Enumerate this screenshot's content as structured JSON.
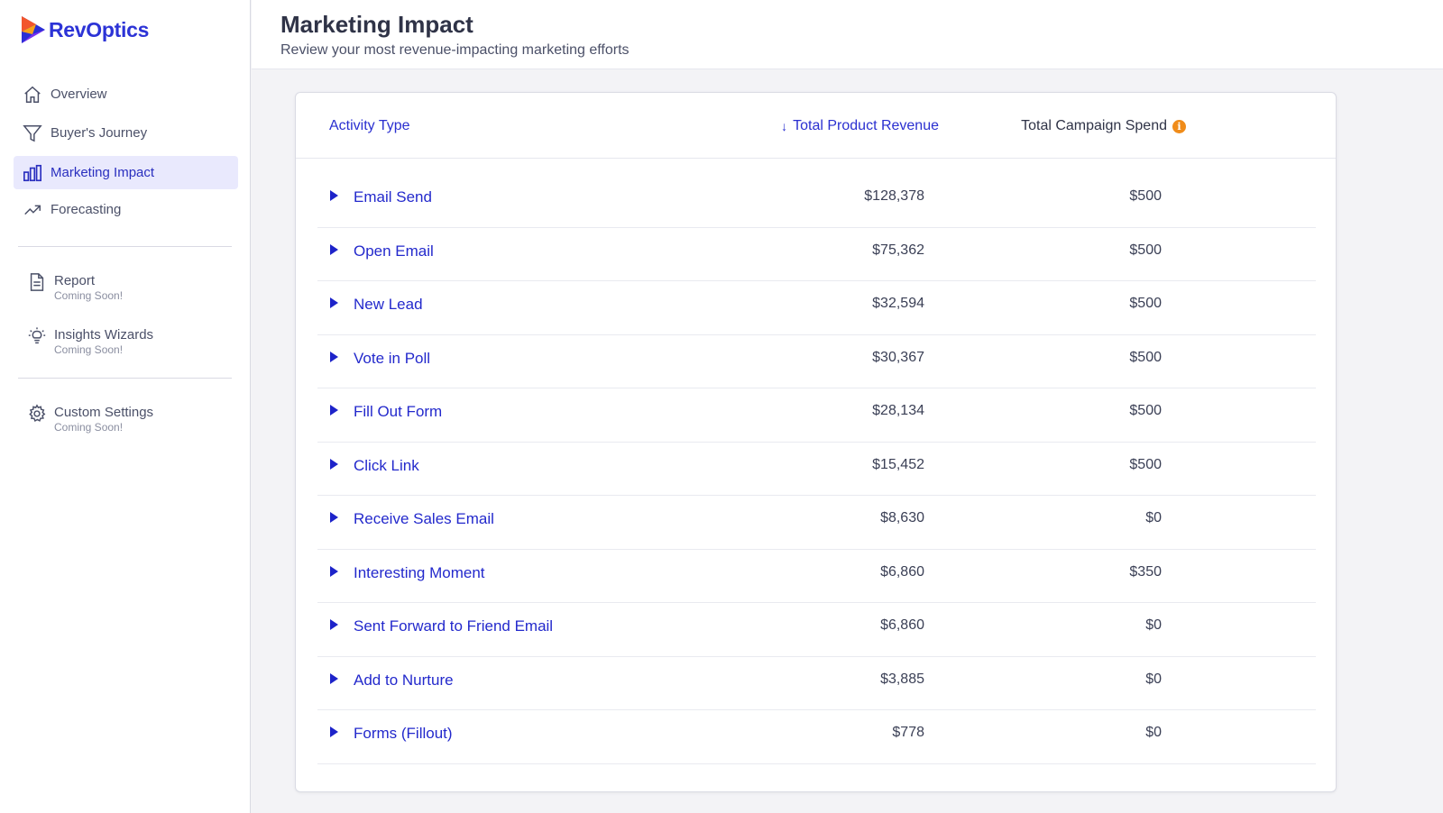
{
  "brand": {
    "name": "RevOptics"
  },
  "sidebar": {
    "items": [
      {
        "label": "Overview",
        "icon": "home-icon"
      },
      {
        "label": "Buyer's Journey",
        "icon": "funnel-icon"
      },
      {
        "label": "Marketing Impact",
        "icon": "bar-chart-icon",
        "active": true
      },
      {
        "label": "Forecasting",
        "icon": "trend-up-icon"
      }
    ],
    "secondary": [
      {
        "label": "Report",
        "note": "Coming Soon!",
        "icon": "document-icon"
      },
      {
        "label": "Insights Wizards",
        "note": "Coming Soon!",
        "icon": "lightbulb-icon"
      }
    ],
    "settings": {
      "label": "Custom Settings",
      "note": "Coming Soon!",
      "icon": "gear-icon"
    }
  },
  "header": {
    "title": "Marketing Impact",
    "subtitle": "Review your most revenue-impacting marketing efforts"
  },
  "table": {
    "columns": {
      "activity": "Activity Type",
      "revenue": "Total Product Revenue",
      "spend": "Total Campaign Spend"
    },
    "sort": {
      "column": "revenue",
      "direction": "descending"
    },
    "rows": [
      {
        "activity": "Email Send",
        "revenue": "$128,378",
        "spend": "$500"
      },
      {
        "activity": "Open Email",
        "revenue": "$75,362",
        "spend": "$500"
      },
      {
        "activity": "New Lead",
        "revenue": "$32,594",
        "spend": "$500"
      },
      {
        "activity": "Vote in Poll",
        "revenue": "$30,367",
        "spend": "$500"
      },
      {
        "activity": "Fill Out Form",
        "revenue": "$28,134",
        "spend": "$500"
      },
      {
        "activity": "Click Link",
        "revenue": "$15,452",
        "spend": "$500"
      },
      {
        "activity": "Receive Sales Email",
        "revenue": "$8,630",
        "spend": "$0"
      },
      {
        "activity": "Interesting Moment",
        "revenue": "$6,860",
        "spend": "$350"
      },
      {
        "activity": "Sent Forward to Friend Email",
        "revenue": "$6,860",
        "spend": "$0"
      },
      {
        "activity": "Add to Nurture",
        "revenue": "$3,885",
        "spend": "$0"
      },
      {
        "activity": "Forms (Fillout)",
        "revenue": "$778",
        "spend": "$0"
      }
    ]
  },
  "colors": {
    "accent": "#2a2fd0",
    "active_nav_bg": "#e9e9fd",
    "info": "#f08c1a",
    "page_bg": "#f3f3f6"
  }
}
